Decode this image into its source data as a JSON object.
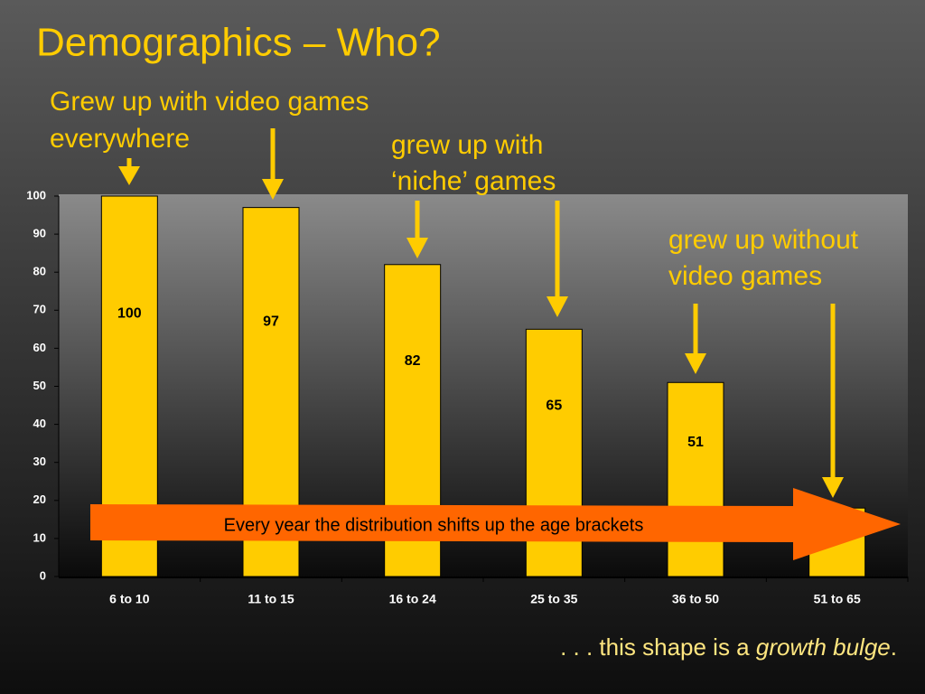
{
  "chart_data": {
    "type": "bar",
    "title": "Demographics – Who?",
    "categories": [
      "6 to 10",
      "11 to 15",
      "16 to 24",
      "25 to 35",
      "36 to 50",
      "51 to 65"
    ],
    "values": [
      100,
      97,
      82,
      65,
      51,
      18
    ],
    "color": "#ffcc00",
    "ylim": [
      0,
      100
    ],
    "yticks": [
      0,
      10,
      20,
      30,
      40,
      50,
      60,
      70,
      80,
      90,
      100
    ],
    "grid": false,
    "annotations": {
      "group_1": [
        "Grew up with video games",
        "everywhere"
      ],
      "group_2": [
        "grew up with",
        "‘niche’ games"
      ],
      "group_3": [
        "grew up without",
        "video games"
      ],
      "shift_arrow": "Every year the distribution shifts up the age brackets",
      "footer": {
        "prefix": ". . . this shape is a ",
        "emphasis": "growth bulge",
        "suffix": "."
      }
    }
  }
}
